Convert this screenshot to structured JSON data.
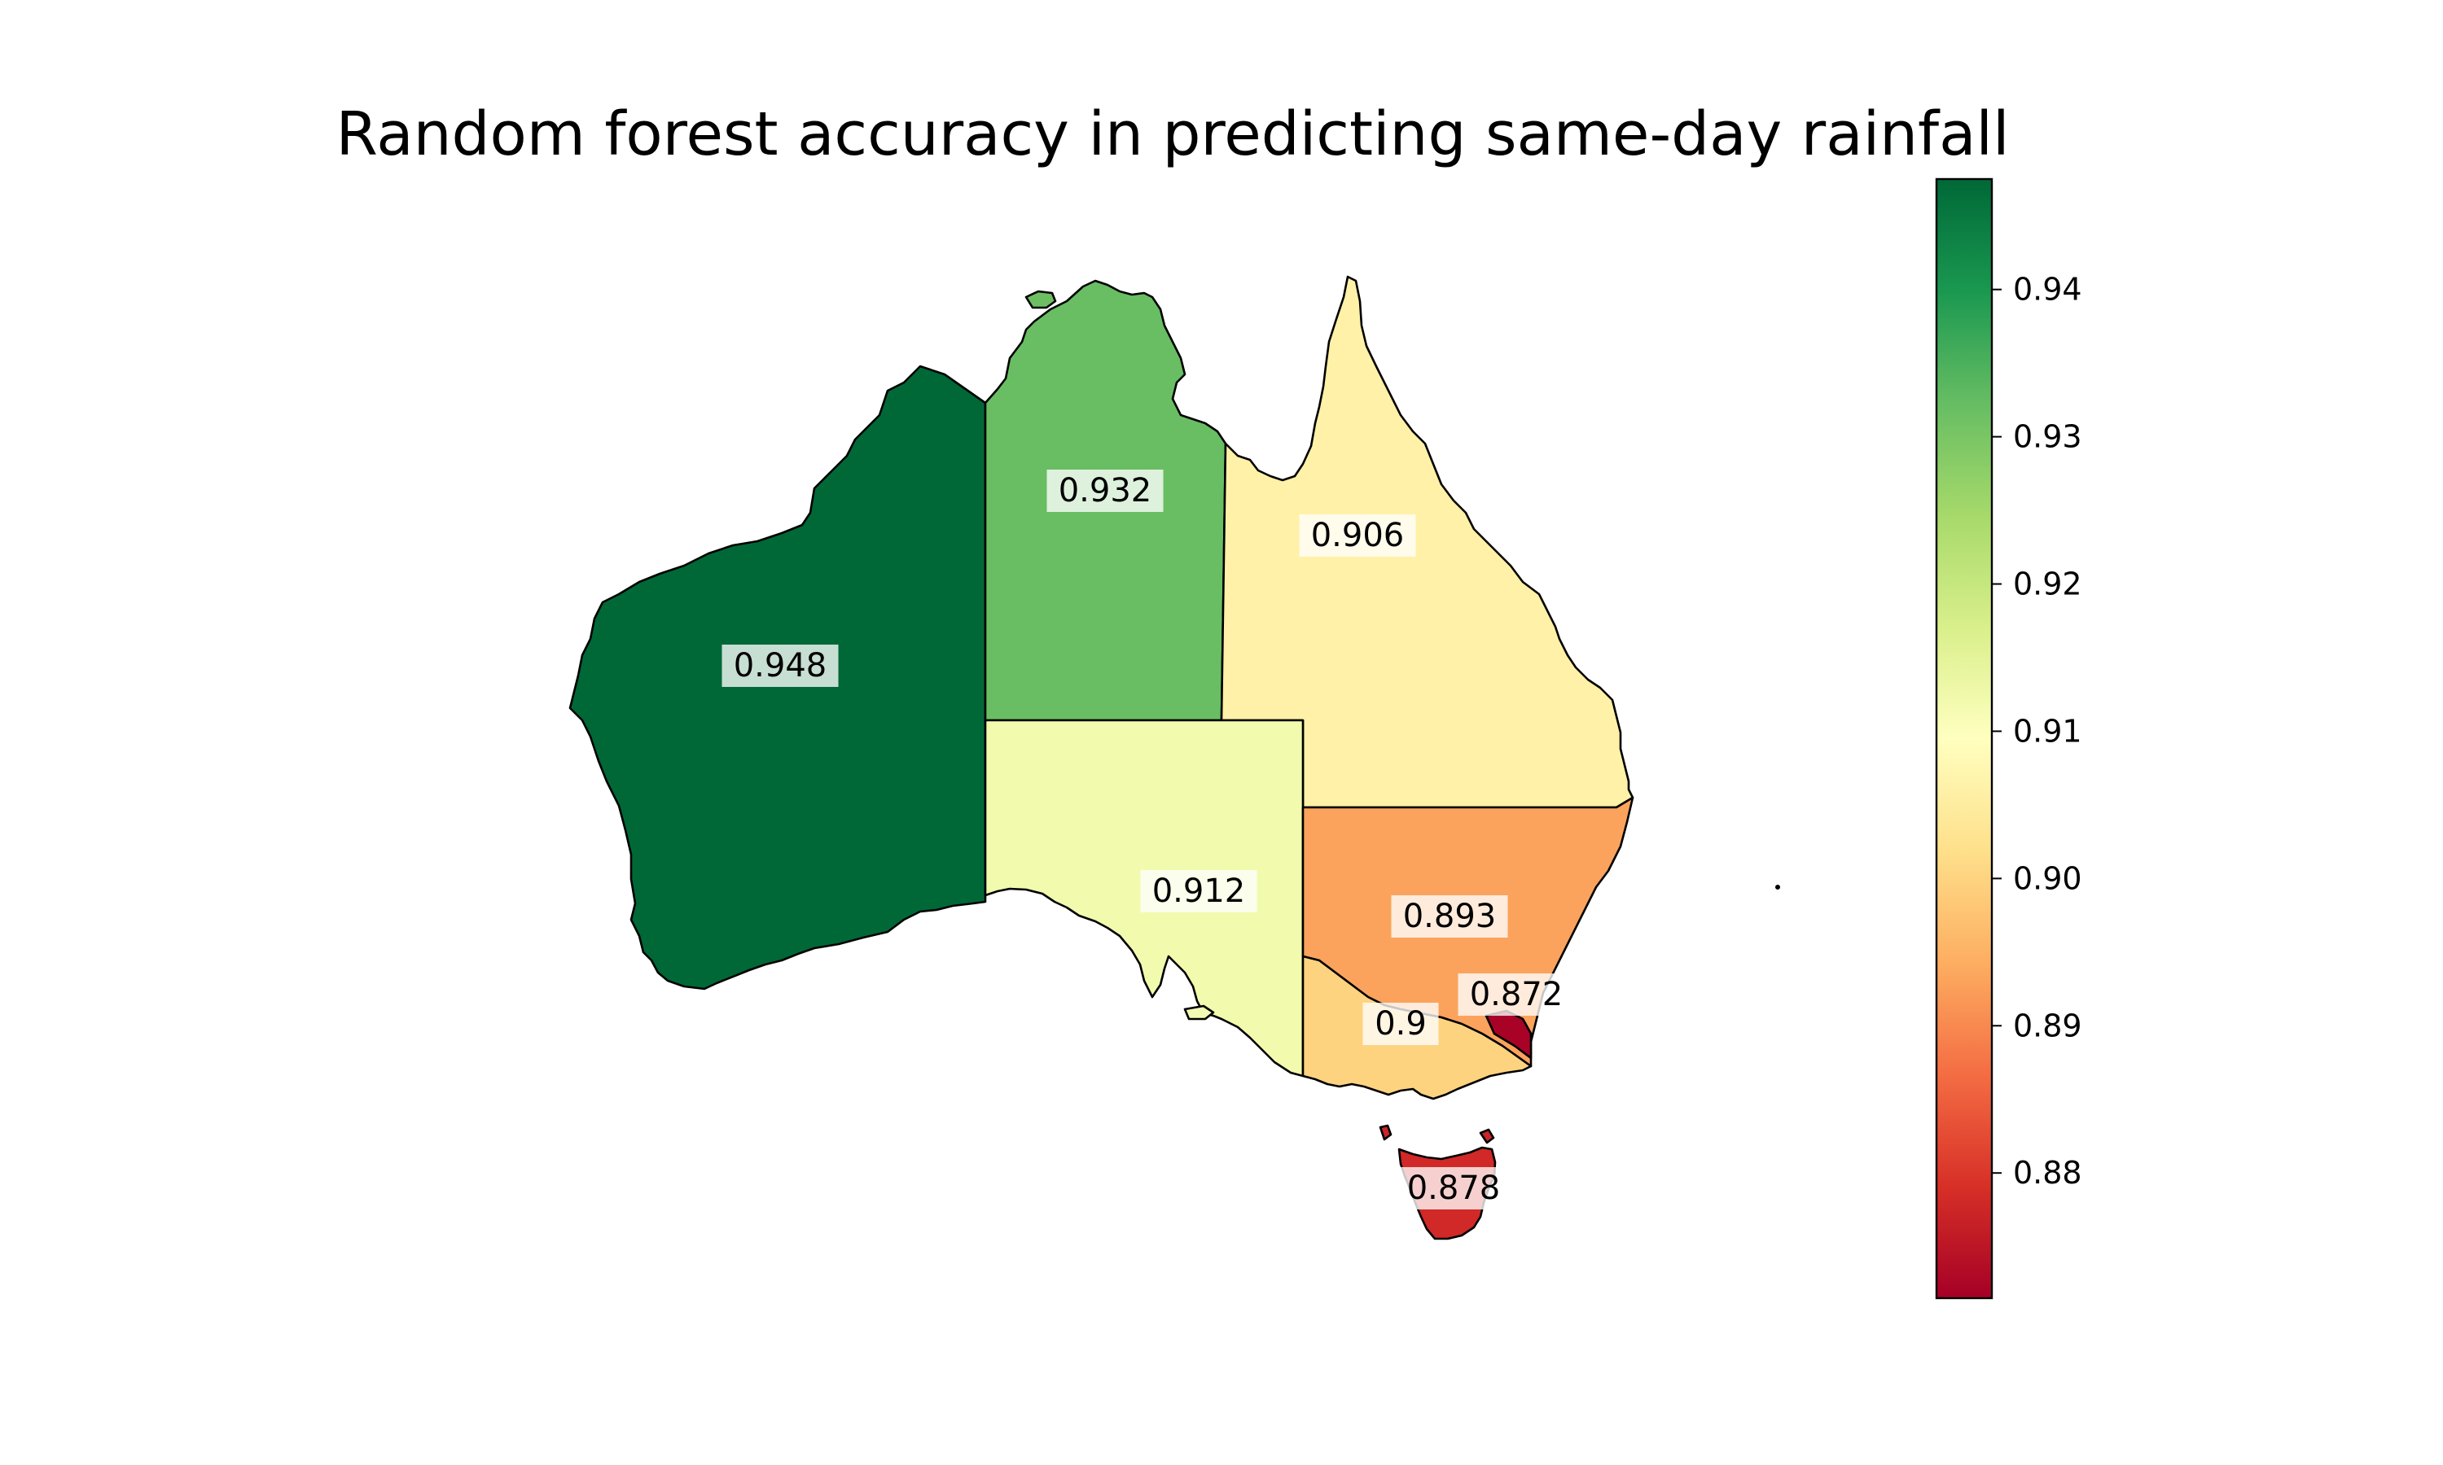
{
  "chart_data": {
    "type": "choropleth",
    "title": "Random forest accuracy in predicting same-day rainfall",
    "colormap": "RdYlGn",
    "value_range": [
      0.8715,
      0.9475
    ],
    "regions": [
      {
        "id": "WA",
        "value": 0.948,
        "label": "0.948"
      },
      {
        "id": "NT",
        "value": 0.932,
        "label": "0.932"
      },
      {
        "id": "QLD",
        "value": 0.906,
        "label": "0.906"
      },
      {
        "id": "SA",
        "value": 0.912,
        "label": "0.912"
      },
      {
        "id": "NSW",
        "value": 0.893,
        "label": "0.893"
      },
      {
        "id": "ACT",
        "value": 0.872,
        "label": "0.872"
      },
      {
        "id": "VIC",
        "value": 0.9,
        "label": "0.9"
      },
      {
        "id": "TAS",
        "value": 0.878,
        "label": "0.878"
      }
    ],
    "colorbar": {
      "ticks": [
        0.94,
        0.93,
        0.92,
        0.91,
        0.9,
        0.89,
        0.88
      ],
      "tick_labels": [
        "0.94",
        "0.93",
        "0.92",
        "0.91",
        "0.90",
        "0.89",
        "0.88"
      ]
    }
  }
}
